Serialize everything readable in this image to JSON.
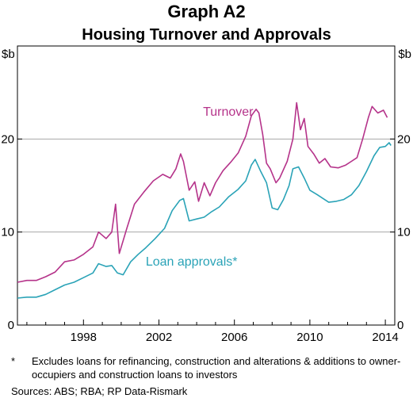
{
  "chart_data": {
    "type": "line",
    "title": "Graph A2",
    "subtitle": "Housing Turnover and Approvals",
    "unit_left": "$b",
    "unit_right": "$b",
    "xlim": [
      1994.5,
      2014.5
    ],
    "ylim": [
      0,
      30
    ],
    "x_ticks": [
      1998,
      2002,
      2006,
      2010,
      2014
    ],
    "y_ticks": [
      0,
      10,
      20
    ],
    "grid": true,
    "series": [
      {
        "name": "Turnover",
        "color": "#b5338a",
        "points": [
          [
            1994.5,
            4.6
          ],
          [
            1995.0,
            4.8
          ],
          [
            1995.5,
            4.8
          ],
          [
            1996.0,
            5.2
          ],
          [
            1996.5,
            5.7
          ],
          [
            1997.0,
            6.8
          ],
          [
            1997.5,
            7.0
          ],
          [
            1998.0,
            7.6
          ],
          [
            1998.5,
            8.4
          ],
          [
            1998.8,
            10.0
          ],
          [
            1999.2,
            9.3
          ],
          [
            1999.5,
            10.0
          ],
          [
            1999.7,
            13.0
          ],
          [
            1999.9,
            7.7
          ],
          [
            2000.3,
            10.4
          ],
          [
            2000.7,
            13.0
          ],
          [
            2001.2,
            14.3
          ],
          [
            2001.7,
            15.5
          ],
          [
            2002.2,
            16.2
          ],
          [
            2002.6,
            15.8
          ],
          [
            2002.9,
            16.8
          ],
          [
            2003.15,
            18.4
          ],
          [
            2003.3,
            17.6
          ],
          [
            2003.6,
            14.5
          ],
          [
            2003.9,
            15.4
          ],
          [
            2004.1,
            13.3
          ],
          [
            2004.4,
            15.3
          ],
          [
            2004.7,
            13.9
          ],
          [
            2005.0,
            15.3
          ],
          [
            2005.4,
            16.6
          ],
          [
            2005.8,
            17.5
          ],
          [
            2006.2,
            18.5
          ],
          [
            2006.6,
            20.3
          ],
          [
            2006.9,
            22.5
          ],
          [
            2007.15,
            23.2
          ],
          [
            2007.3,
            22.8
          ],
          [
            2007.5,
            20.5
          ],
          [
            2007.7,
            17.4
          ],
          [
            2007.9,
            16.8
          ],
          [
            2008.2,
            15.3
          ],
          [
            2008.4,
            15.8
          ],
          [
            2008.8,
            17.6
          ],
          [
            2009.1,
            20.0
          ],
          [
            2009.3,
            23.9
          ],
          [
            2009.5,
            21.0
          ],
          [
            2009.7,
            22.2
          ],
          [
            2009.9,
            19.2
          ],
          [
            2010.2,
            18.4
          ],
          [
            2010.5,
            17.4
          ],
          [
            2010.8,
            17.9
          ],
          [
            2011.1,
            17.0
          ],
          [
            2011.5,
            16.9
          ],
          [
            2011.9,
            17.2
          ],
          [
            2012.2,
            17.6
          ],
          [
            2012.5,
            18.0
          ],
          [
            2012.8,
            20.0
          ],
          [
            2013.1,
            22.3
          ],
          [
            2013.3,
            23.5
          ],
          [
            2013.6,
            22.8
          ],
          [
            2013.9,
            23.1
          ],
          [
            2014.1,
            22.3
          ]
        ]
      },
      {
        "name": "Loan approvals*",
        "color": "#2aa3b7",
        "points": [
          [
            1994.5,
            2.9
          ],
          [
            1995.0,
            3.0
          ],
          [
            1995.5,
            3.0
          ],
          [
            1996.0,
            3.3
          ],
          [
            1996.5,
            3.8
          ],
          [
            1997.0,
            4.3
          ],
          [
            1997.5,
            4.6
          ],
          [
            1998.0,
            5.1
          ],
          [
            1998.5,
            5.6
          ],
          [
            1998.8,
            6.6
          ],
          [
            1999.2,
            6.3
          ],
          [
            1999.5,
            6.4
          ],
          [
            1999.8,
            5.6
          ],
          [
            2000.1,
            5.4
          ],
          [
            2000.5,
            6.8
          ],
          [
            2000.9,
            7.6
          ],
          [
            2001.3,
            8.3
          ],
          [
            2001.8,
            9.3
          ],
          [
            2002.3,
            10.4
          ],
          [
            2002.7,
            12.3
          ],
          [
            2003.1,
            13.4
          ],
          [
            2003.3,
            13.6
          ],
          [
            2003.6,
            11.2
          ],
          [
            2004.0,
            11.4
          ],
          [
            2004.4,
            11.6
          ],
          [
            2004.8,
            12.2
          ],
          [
            2005.2,
            12.7
          ],
          [
            2005.7,
            13.8
          ],
          [
            2006.2,
            14.6
          ],
          [
            2006.6,
            15.5
          ],
          [
            2006.9,
            17.2
          ],
          [
            2007.1,
            17.8
          ],
          [
            2007.4,
            16.5
          ],
          [
            2007.7,
            15.3
          ],
          [
            2008.0,
            12.6
          ],
          [
            2008.3,
            12.4
          ],
          [
            2008.6,
            13.5
          ],
          [
            2008.9,
            15.0
          ],
          [
            2009.1,
            16.8
          ],
          [
            2009.4,
            17.0
          ],
          [
            2009.7,
            15.8
          ],
          [
            2010.0,
            14.5
          ],
          [
            2010.4,
            14.0
          ],
          [
            2010.7,
            13.6
          ],
          [
            2011.0,
            13.2
          ],
          [
            2011.4,
            13.3
          ],
          [
            2011.8,
            13.5
          ],
          [
            2012.2,
            14.0
          ],
          [
            2012.6,
            15.0
          ],
          [
            2013.0,
            16.5
          ],
          [
            2013.4,
            18.2
          ],
          [
            2013.7,
            19.1
          ],
          [
            2014.0,
            19.2
          ],
          [
            2014.2,
            19.6
          ],
          [
            2014.3,
            19.3
          ]
        ]
      }
    ],
    "series_labels": [
      {
        "text": "Turnover",
        "x": 2007.0,
        "y": 22.5
      },
      {
        "text": "Loan approvals*",
        "x": 2001.3,
        "y": 6.4
      }
    ],
    "footnote_marker": "*",
    "footnote": "Excludes loans for refinancing, construction and alterations & additions to owner-occupiers and construction loans to investors",
    "sources": "Sources:  ABS; RBA; RP Data-Rismark"
  }
}
